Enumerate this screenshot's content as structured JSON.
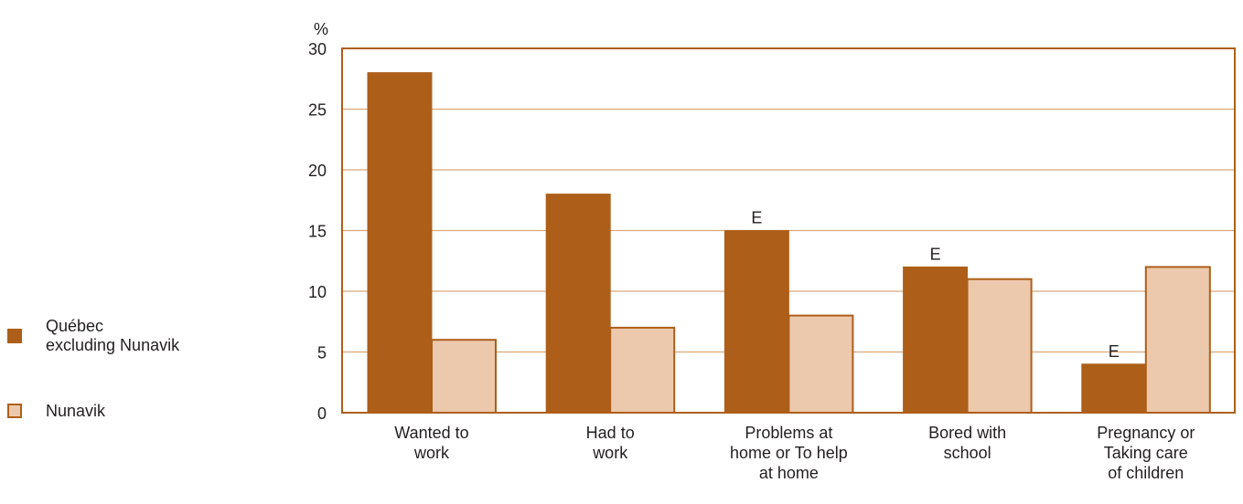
{
  "chart_data": {
    "type": "bar",
    "ylabel": "%",
    "ylim": [
      0,
      30
    ],
    "yticks": [
      0,
      5,
      10,
      15,
      20,
      25,
      30
    ],
    "grid": true,
    "legend_position": "left",
    "categories": [
      "Wanted to\nwork",
      "Had to\nwork",
      "Problems at\nhome or To help\nat home",
      "Bored with\nschool",
      "Pregnancy or\nTaking care\nof children"
    ],
    "series": [
      {
        "name": "Québec\nexcluding Nunavik",
        "color": "#ad5f19",
        "values": [
          28,
          18,
          15,
          12,
          4
        ],
        "flags": [
          "",
          "",
          "E",
          "E",
          "E"
        ]
      },
      {
        "name": "Nunavik",
        "color": "#ecc9ad",
        "stroke": "#ad5f19",
        "values": [
          6,
          7,
          8,
          11,
          12
        ],
        "flags": [
          "",
          "",
          "",
          "",
          ""
        ]
      }
    ]
  }
}
